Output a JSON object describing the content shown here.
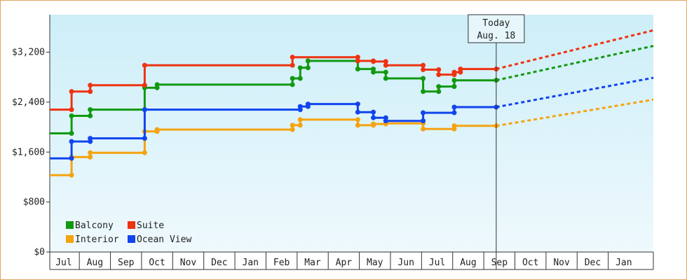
{
  "chart_data": {
    "type": "line",
    "title": "",
    "xlabel": "",
    "ylabel": "",
    "ylim": [
      0,
      3800
    ],
    "yticks": [
      {
        "value": 0,
        "label": "$0"
      },
      {
        "value": 800,
        "label": "$800"
      },
      {
        "value": 1600,
        "label": "$1,600"
      },
      {
        "value": 2400,
        "label": "$2,400"
      },
      {
        "value": 3200,
        "label": "$3,200"
      }
    ],
    "month_labels": [
      "Jul",
      "Aug",
      "Sep",
      "Oct",
      "Nov",
      "Dec",
      "Jan",
      "Feb",
      "Mar",
      "Apr",
      "May",
      "Jun",
      "Jul",
      "Aug",
      "Sep",
      "Oct",
      "Nov",
      "Dec",
      "Jan"
    ],
    "xlim": [
      -0.45,
      18.95
    ],
    "today": {
      "x": 13.9,
      "line1": "Today",
      "line2": "Aug. 18"
    },
    "grid": false,
    "legend_position": "bottom-left",
    "series": [
      {
        "name": "Balcony",
        "color": "#119911",
        "steps": [
          [
            -0.45,
            1900
          ],
          [
            0.25,
            2180
          ],
          [
            0.85,
            2280
          ],
          [
            2.6,
            2630
          ],
          [
            3.0,
            2680
          ],
          [
            7.35,
            2780
          ],
          [
            7.6,
            2950
          ],
          [
            7.85,
            3060
          ],
          [
            9.45,
            2930
          ],
          [
            9.95,
            2880
          ],
          [
            10.35,
            2780
          ],
          [
            11.55,
            2570
          ],
          [
            12.05,
            2650
          ],
          [
            12.55,
            2750
          ],
          [
            13.9,
            2750
          ]
        ],
        "forecast": [
          [
            13.9,
            2750
          ],
          [
            18.95,
            3300
          ]
        ]
      },
      {
        "name": "Suite",
        "color": "#ee3311",
        "steps": [
          [
            -0.45,
            2280
          ],
          [
            0.25,
            2570
          ],
          [
            0.85,
            2670
          ],
          [
            2.6,
            2990
          ],
          [
            7.35,
            3120
          ],
          [
            9.45,
            3060
          ],
          [
            9.95,
            3050
          ],
          [
            10.35,
            2990
          ],
          [
            11.55,
            2920
          ],
          [
            12.05,
            2840
          ],
          [
            12.55,
            2880
          ],
          [
            12.75,
            2930
          ],
          [
            13.9,
            2930
          ]
        ],
        "forecast": [
          [
            13.9,
            2930
          ],
          [
            18.95,
            3550
          ]
        ]
      },
      {
        "name": "Interior",
        "color": "#f5a311",
        "steps": [
          [
            -0.45,
            1230
          ],
          [
            0.25,
            1520
          ],
          [
            0.85,
            1590
          ],
          [
            2.6,
            1930
          ],
          [
            3.0,
            1960
          ],
          [
            7.35,
            2030
          ],
          [
            7.6,
            2120
          ],
          [
            9.45,
            2030
          ],
          [
            9.95,
            2050
          ],
          [
            10.35,
            2060
          ],
          [
            11.55,
            1970
          ],
          [
            12.55,
            2020
          ],
          [
            13.9,
            2020
          ]
        ],
        "forecast": [
          [
            13.9,
            2020
          ],
          [
            18.95,
            2440
          ]
        ]
      },
      {
        "name": "Ocean View",
        "color": "#1144ee",
        "steps": [
          [
            -0.45,
            1500
          ],
          [
            0.25,
            1770
          ],
          [
            0.85,
            1820
          ],
          [
            2.6,
            2280
          ],
          [
            7.6,
            2330
          ],
          [
            7.85,
            2370
          ],
          [
            9.45,
            2240
          ],
          [
            9.95,
            2150
          ],
          [
            10.35,
            2100
          ],
          [
            11.55,
            2230
          ],
          [
            12.55,
            2320
          ],
          [
            13.9,
            2320
          ]
        ],
        "forecast": [
          [
            13.9,
            2320
          ],
          [
            18.95,
            2790
          ]
        ]
      }
    ],
    "colors": {
      "background_top": "#cdeef8",
      "background_bottom": "#eef9fd",
      "border": "#e0a45c",
      "axis": "#333333",
      "today_box": "#e6f6fb"
    }
  }
}
